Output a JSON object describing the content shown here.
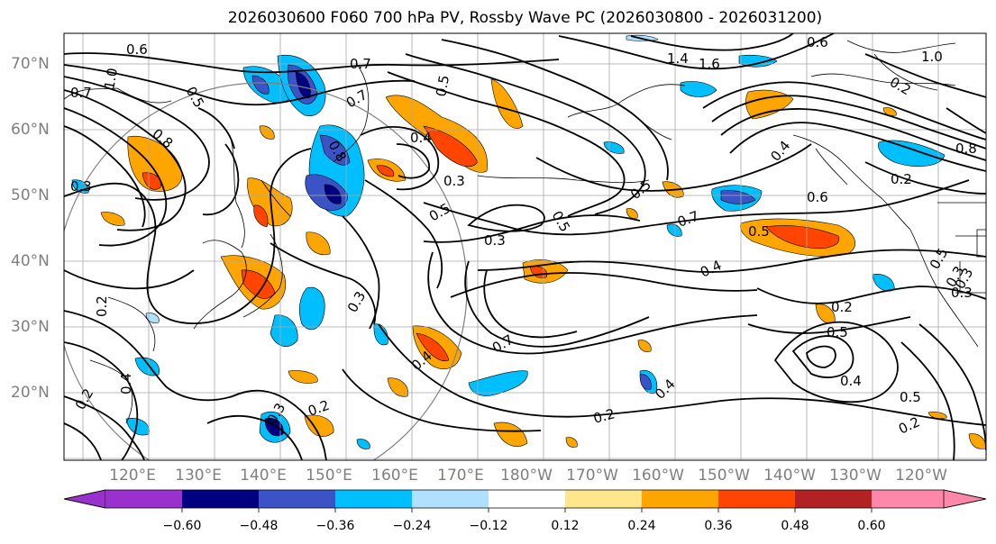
{
  "title": "2026030600 F060 700 hPa PV, Rossby Wave PC (2026030800 - 2026031200)",
  "lat_labels": [
    "70°N",
    "60°N",
    "50°N",
    "40°N",
    "30°N",
    "20°N"
  ],
  "lon_labels": [
    "120°E",
    "130°E",
    "140°E",
    "150°E",
    "160°E",
    "170°E",
    "180°W",
    "170°W",
    "160°W",
    "150°W",
    "140°W",
    "130°W",
    "120°W"
  ],
  "colorbar": {
    "colors": [
      "#9932cc",
      "#000080",
      "#3a54c8",
      "#00bfff",
      "#b0e0ff",
      "#ffffff",
      "#ffe68a",
      "#ffa500",
      "#ff4500",
      "#b22222",
      "#ff88aa"
    ],
    "ticks": [
      "−0.60",
      "−0.48",
      "−0.36",
      "−0.24",
      "−0.12",
      "0.12",
      "0.24",
      "0.36",
      "0.48",
      "0.60"
    ]
  },
  "contour_labels": [
    "0.6",
    "1.0",
    "0.5",
    "0.8",
    "0.7",
    "0.3",
    "0.2",
    "0.4",
    "1.4",
    "1.6",
    "0.6",
    "1.0",
    "0.7",
    "0.8",
    "0.7",
    "0.5",
    "0.4",
    "0.3",
    "0.3",
    "0.5",
    "0.5",
    "0.3",
    "0.5",
    "0.7",
    "0.4",
    "0.5",
    "0.6",
    "0.2",
    "0.8",
    "0.3",
    "0.2",
    "0.4",
    "0.4",
    "0.7",
    "0.2",
    "0.4",
    "0.5",
    "0.4",
    "0.5",
    "0.2",
    "0.2",
    "0.3",
    "0.2",
    "0.3",
    "0.5",
    "0.3",
    "0.2"
  ]
}
